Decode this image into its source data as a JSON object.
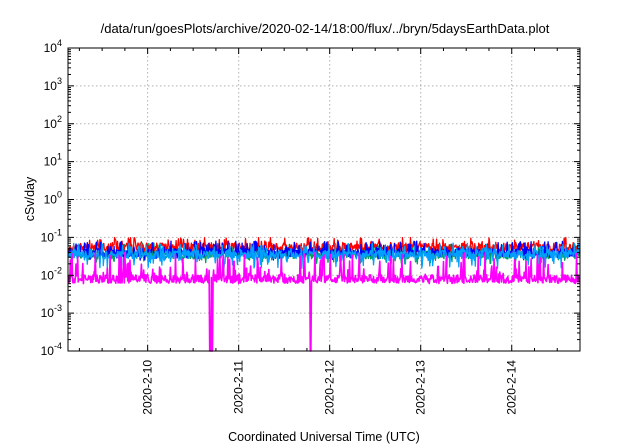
{
  "chart_data": {
    "type": "line",
    "title": "/data/run/goesPlots/archive/2020-02-14/18:00/flux/../bryn/5daysEarthData.plot",
    "xlabel": "Coordinated Universal Time (UTC)",
    "ylabel": "cSv/day",
    "y_scale": "log",
    "ylim": [
      0.0001,
      10000
    ],
    "xlim": [
      "2020-02-09T03:00",
      "2020-02-14T18:00"
    ],
    "x_ticks": [
      "2020-2-10",
      "2020-2-11",
      "2020-2-12",
      "2020-2-13",
      "2020-2-14"
    ],
    "y_ticks": [
      {
        "base": "10",
        "exp": "-4"
      },
      {
        "base": "10",
        "exp": "-3"
      },
      {
        "base": "10",
        "exp": "-2"
      },
      {
        "base": "10",
        "exp": "-1"
      },
      {
        "base": "10",
        "exp": "0"
      },
      {
        "base": "10",
        "exp": "1"
      },
      {
        "base": "10",
        "exp": "2"
      },
      {
        "base": "10",
        "exp": "3"
      },
      {
        "base": "10",
        "exp": "4"
      }
    ],
    "grid": true,
    "legend": "none",
    "series": [
      {
        "color": "#ff0000",
        "typical": 0.055,
        "range": [
          0.04,
          0.1
        ]
      },
      {
        "color": "#00a060",
        "typical": 0.035,
        "range": [
          0.02,
          0.07
        ]
      },
      {
        "color": "#0000ff",
        "typical": 0.04,
        "range": [
          0.025,
          0.08
        ]
      },
      {
        "color": "#00a0ff",
        "typical": 0.035,
        "range": [
          0.015,
          0.07
        ]
      },
      {
        "color": "#ff00ff",
        "typical": 0.008,
        "range": [
          0.006,
          0.04
        ],
        "dropouts": [
          "2020-02-10T16:30",
          "2020-02-10T17:00",
          "2020-02-11T19:00"
        ]
      }
    ]
  }
}
